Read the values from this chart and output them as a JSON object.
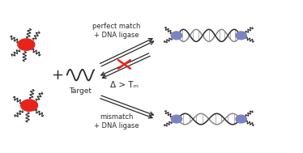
{
  "background_color": "#ffffff",
  "red_nanoparticle_color": "#e8231a",
  "blue_nanoparticle_color": "#7b84c0",
  "line_color": "#2a2a2a",
  "cross_color": "#e8231a",
  "label_perfect_match": "perfect match\n+ DNA ligase",
  "label_mismatch": "mismatch\n+ DNA ligase",
  "label_target": "Target",
  "label_delta_tm": "Δ > Tₘ",
  "plus_sign": "+",
  "figsize": [
    3.74,
    1.89
  ],
  "dpi": 100
}
